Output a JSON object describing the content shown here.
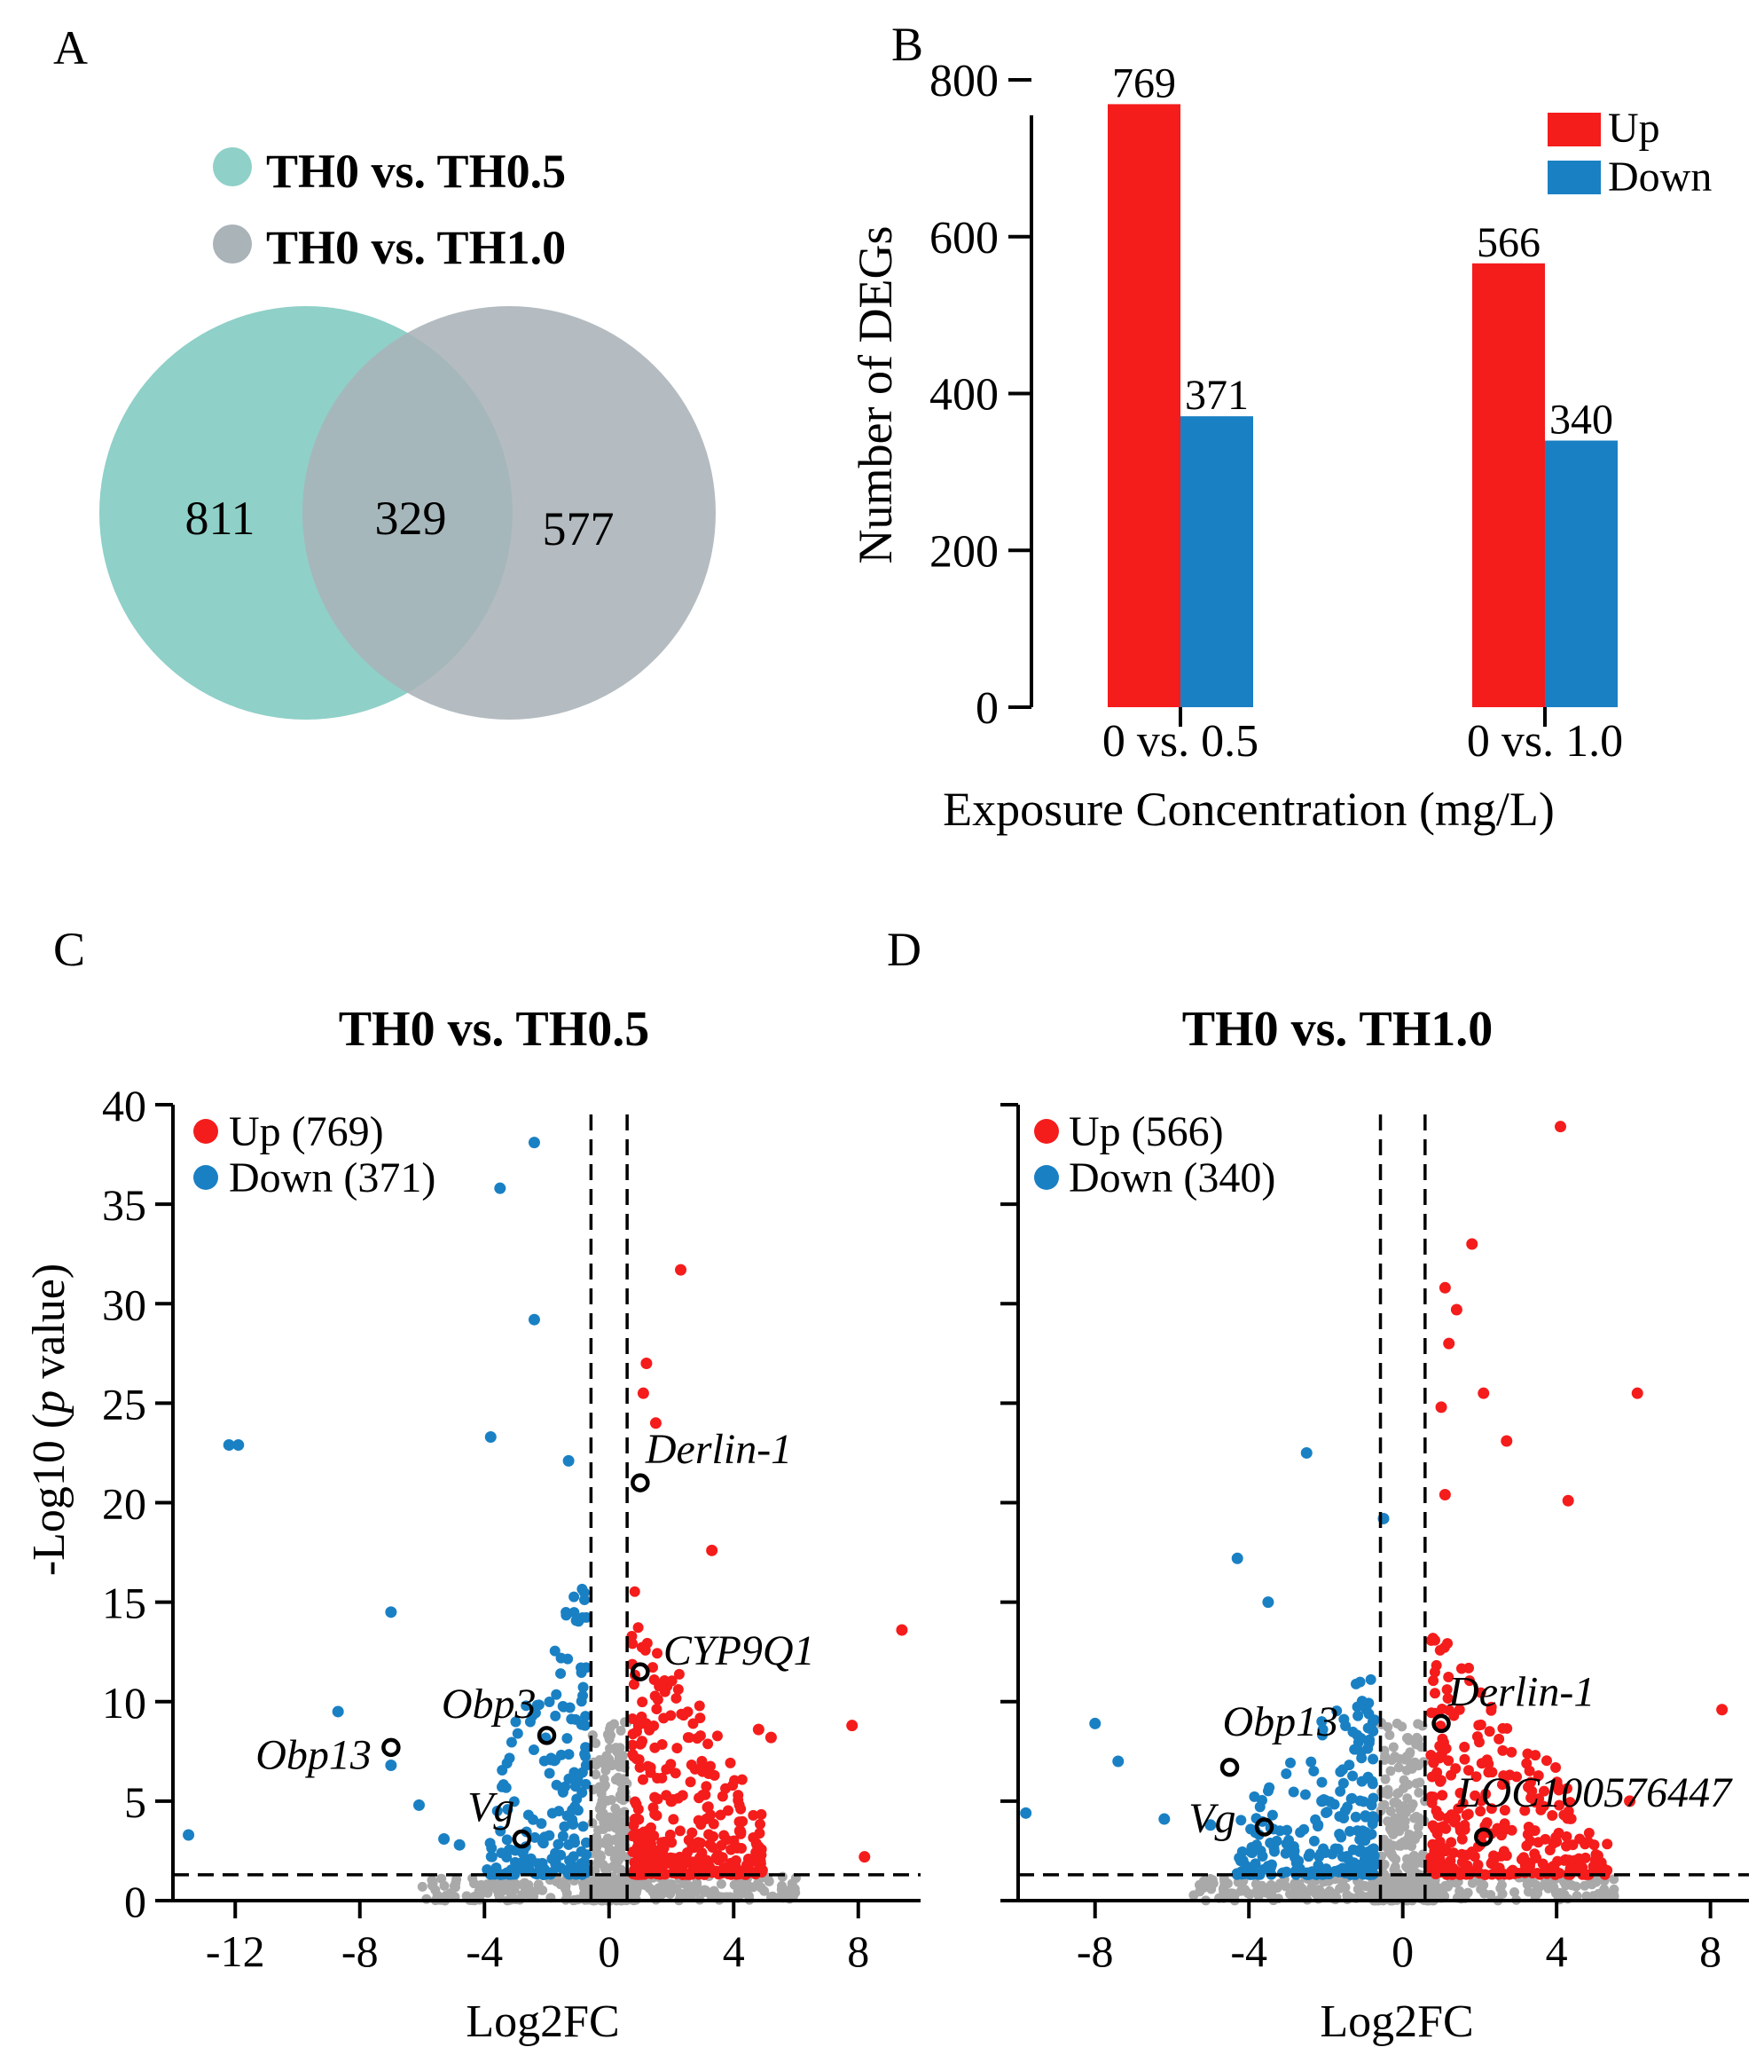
{
  "colors": {
    "up": "#f51c1c",
    "down": "#1a80c4",
    "ns": "#a9a9a9",
    "venn_a": "#8fd0c8",
    "venn_b": "#aab3b8",
    "venn_overlap": "#91b5b6"
  },
  "chart_data": [
    {
      "panel": "A",
      "type": "venn",
      "legend": [
        "TH0 vs. TH0.5",
        "TH0 vs. TH1.0"
      ],
      "sets": {
        "only_a": 811,
        "overlap": 329,
        "only_b": 577
      }
    },
    {
      "panel": "B",
      "type": "bar",
      "categories": [
        "0 vs. 0.5",
        "0 vs. 1.0"
      ],
      "series": [
        {
          "name": "Up",
          "values": [
            769,
            566
          ]
        },
        {
          "name": "Down",
          "values": [
            371,
            340
          ]
        }
      ],
      "xlabel": "Exposure Concentration (mg/L)",
      "ylabel": "Number of DEGs",
      "ylim": [
        0,
        800
      ],
      "yticks": [
        0,
        200,
        400,
        600,
        800
      ]
    },
    {
      "panel": "C",
      "type": "scatter",
      "title": "TH0 vs. TH0.5",
      "xlabel": "Log2FC",
      "ylabel_pre": "-Log10 (",
      "ylabel_italic": "p",
      "ylabel_post": " value)",
      "xlim": [
        -14,
        10
      ],
      "ylim": [
        0,
        40
      ],
      "xticks": [
        -12,
        -8,
        -4,
        0,
        4,
        8
      ],
      "yticks": [
        0,
        5,
        10,
        15,
        20,
        25,
        30,
        35,
        40
      ],
      "fc_threshold": 0.58,
      "p_threshold": 1.3,
      "legend": [
        {
          "name": "Up",
          "count": "769"
        },
        {
          "name": "Down",
          "count": "371"
        }
      ],
      "highlights": [
        {
          "label": "Derlin-1",
          "x": 1.0,
          "y": 21.0
        },
        {
          "label": "CYP9Q1",
          "x": 1.0,
          "y": 11.5
        },
        {
          "label": "Obp3",
          "x": -2.0,
          "y": 8.3
        },
        {
          "label": "Obp13",
          "x": -7.0,
          "y": 7.7
        },
        {
          "label": "Vg",
          "x": -2.8,
          "y": 3.1
        }
      ],
      "up_points": [
        [
          2.3,
          31.7
        ],
        [
          1.2,
          27.0
        ],
        [
          1.1,
          25.5
        ],
        [
          1.5,
          24.0
        ],
        [
          3.3,
          17.6
        ],
        [
          9.4,
          13.6
        ],
        [
          4.8,
          8.6
        ],
        [
          7.8,
          8.8
        ],
        [
          5.2,
          8.2
        ],
        [
          8.2,
          2.2
        ],
        [
          3.2,
          6.4
        ],
        [
          2.0,
          5.0
        ],
        [
          4.2,
          3.5
        ]
      ],
      "down_points": [
        [
          -2.4,
          38.1
        ],
        [
          -3.5,
          35.8
        ],
        [
          -2.4,
          29.2
        ],
        [
          -12.2,
          22.9
        ],
        [
          -11.9,
          22.9
        ],
        [
          -3.8,
          23.3
        ],
        [
          -1.3,
          22.1
        ],
        [
          -7.0,
          14.5
        ],
        [
          -8.7,
          9.5
        ],
        [
          -13.5,
          3.3
        ],
        [
          -7.0,
          6.8
        ],
        [
          -6.1,
          4.8
        ],
        [
          -5.3,
          3.1
        ],
        [
          -4.8,
          2.8
        ]
      ]
    },
    {
      "panel": "D",
      "type": "scatter",
      "title": "TH0 vs. TH1.0",
      "xlabel": "Log2FC",
      "xlim": [
        -10,
        9
      ],
      "ylim": [
        0,
        40
      ],
      "xticks": [
        -8,
        -4,
        0,
        4,
        8
      ],
      "fc_threshold": 0.58,
      "p_threshold": 1.3,
      "legend": [
        {
          "name": "Up",
          "count": "566"
        },
        {
          "name": "Down",
          "count": "340"
        }
      ],
      "highlights": [
        {
          "label": "Derlin-1",
          "x": 1.0,
          "y": 8.9
        },
        {
          "label": "Obp13",
          "x": -4.5,
          "y": 6.7
        },
        {
          "label": "Vg",
          "x": -3.6,
          "y": 3.7
        },
        {
          "label": "LOC100576447",
          "x": 2.1,
          "y": 3.2
        }
      ],
      "up_points": [
        [
          4.1,
          38.9
        ],
        [
          1.8,
          33.0
        ],
        [
          1.1,
          30.8
        ],
        [
          1.4,
          29.7
        ],
        [
          1.2,
          28.0
        ],
        [
          2.1,
          25.5
        ],
        [
          6.1,
          25.5
        ],
        [
          1.0,
          24.8
        ],
        [
          2.7,
          23.1
        ],
        [
          4.3,
          20.1
        ],
        [
          1.1,
          20.4
        ],
        [
          8.3,
          9.6
        ],
        [
          5.9,
          5.0
        ]
      ],
      "down_points": [
        [
          -2.5,
          22.5
        ],
        [
          -0.5,
          19.2
        ],
        [
          -4.3,
          17.2
        ],
        [
          -3.5,
          15.0
        ],
        [
          -8.0,
          8.9
        ],
        [
          -7.4,
          7.0
        ],
        [
          -9.8,
          4.4
        ],
        [
          -6.2,
          4.1
        ],
        [
          -5.0,
          3.8
        ],
        [
          -2.1,
          5.0
        ]
      ]
    }
  ],
  "labels": {
    "panel_a": "A",
    "panel_b": "B",
    "panel_c": "C",
    "panel_d": "D"
  }
}
